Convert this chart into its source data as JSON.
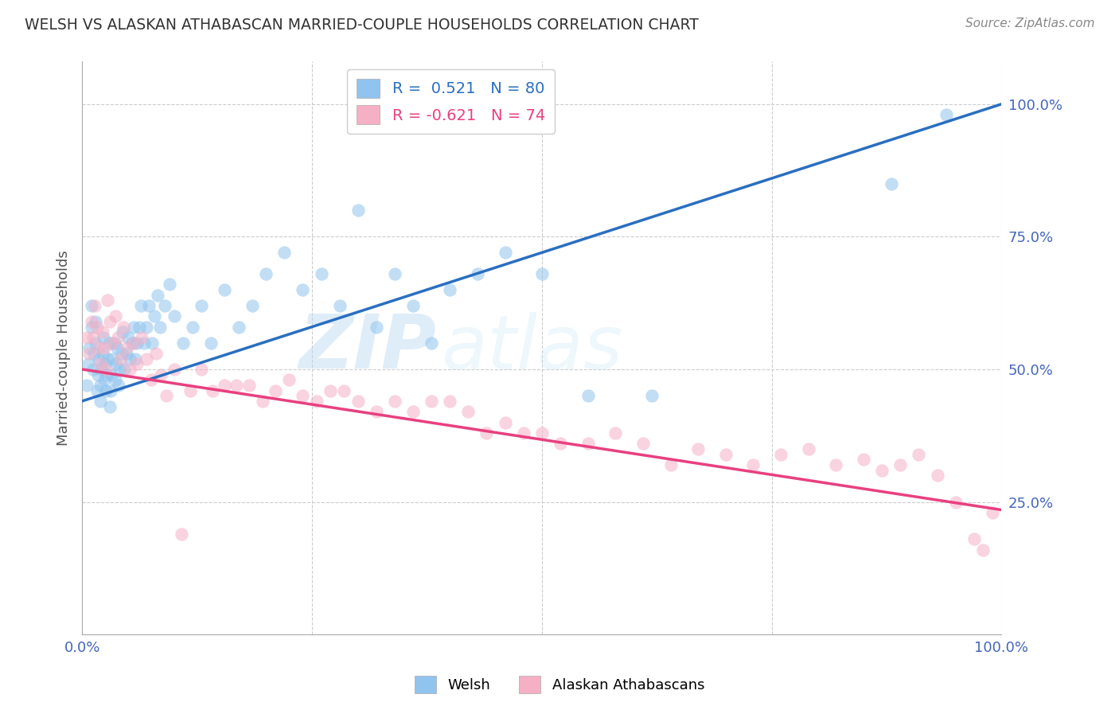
{
  "title": "WELSH VS ALASKAN ATHABASCAN MARRIED-COUPLE HOUSEHOLDS CORRELATION CHART",
  "source": "Source: ZipAtlas.com",
  "ylabel": "Married-couple Households",
  "welsh_R": 0.521,
  "welsh_N": 80,
  "athabascan_R": -0.621,
  "athabascan_N": 74,
  "xlim": [
    0,
    1
  ],
  "ylim": [
    0,
    1.08
  ],
  "welsh_color": "#90C4EE",
  "athabascan_color": "#F5B0C5",
  "welsh_line_color": "#2A6FC0",
  "athabascan_line_color": "#E84080",
  "background_color": "#FFFFFF",
  "grid_color": "#CCCCCC",
  "title_color": "#333333",
  "tick_label_color": "#4466BB",
  "legend_labels": [
    "Welsh",
    "Alaskan Athabascans"
  ],
  "welsh_line_x0": 0.0,
  "welsh_line_y0": 0.44,
  "welsh_line_x1": 1.0,
  "welsh_line_y1": 1.0,
  "ath_line_x0": 0.0,
  "ath_line_y0": 0.5,
  "ath_line_x1": 1.0,
  "ath_line_y1": 0.235,
  "welsh_x": [
    0.005,
    0.007,
    0.008,
    0.01,
    0.01,
    0.012,
    0.013,
    0.015,
    0.015,
    0.016,
    0.017,
    0.018,
    0.02,
    0.02,
    0.021,
    0.022,
    0.023,
    0.024,
    0.025,
    0.026,
    0.027,
    0.028,
    0.029,
    0.03,
    0.031,
    0.032,
    0.033,
    0.035,
    0.036,
    0.037,
    0.038,
    0.04,
    0.041,
    0.043,
    0.044,
    0.046,
    0.048,
    0.05,
    0.052,
    0.054,
    0.056,
    0.058,
    0.06,
    0.062,
    0.064,
    0.067,
    0.07,
    0.073,
    0.076,
    0.079,
    0.082,
    0.085,
    0.09,
    0.095,
    0.1,
    0.11,
    0.12,
    0.13,
    0.14,
    0.155,
    0.17,
    0.185,
    0.2,
    0.22,
    0.24,
    0.26,
    0.28,
    0.3,
    0.32,
    0.34,
    0.36,
    0.38,
    0.4,
    0.43,
    0.46,
    0.5,
    0.55,
    0.62,
    0.88,
    0.94
  ],
  "welsh_y": [
    0.47,
    0.51,
    0.54,
    0.58,
    0.62,
    0.5,
    0.53,
    0.55,
    0.59,
    0.46,
    0.49,
    0.52,
    0.44,
    0.47,
    0.5,
    0.53,
    0.56,
    0.48,
    0.51,
    0.46,
    0.49,
    0.52,
    0.55,
    0.43,
    0.46,
    0.49,
    0.52,
    0.55,
    0.48,
    0.51,
    0.54,
    0.47,
    0.5,
    0.53,
    0.57,
    0.5,
    0.53,
    0.56,
    0.52,
    0.55,
    0.58,
    0.52,
    0.55,
    0.58,
    0.62,
    0.55,
    0.58,
    0.62,
    0.55,
    0.6,
    0.64,
    0.58,
    0.62,
    0.66,
    0.6,
    0.55,
    0.58,
    0.62,
    0.55,
    0.65,
    0.58,
    0.62,
    0.68,
    0.72,
    0.65,
    0.68,
    0.62,
    0.8,
    0.58,
    0.68,
    0.62,
    0.55,
    0.65,
    0.68,
    0.72,
    0.68,
    0.45,
    0.45,
    0.85,
    0.98
  ],
  "athabascan_x": [
    0.005,
    0.008,
    0.01,
    0.012,
    0.014,
    0.016,
    0.018,
    0.02,
    0.022,
    0.024,
    0.026,
    0.028,
    0.03,
    0.033,
    0.036,
    0.039,
    0.042,
    0.045,
    0.048,
    0.052,
    0.056,
    0.06,
    0.065,
    0.07,
    0.075,
    0.08,
    0.086,
    0.092,
    0.1,
    0.108,
    0.118,
    0.13,
    0.142,
    0.155,
    0.168,
    0.182,
    0.196,
    0.21,
    0.225,
    0.24,
    0.255,
    0.27,
    0.285,
    0.3,
    0.32,
    0.34,
    0.36,
    0.38,
    0.4,
    0.42,
    0.44,
    0.46,
    0.48,
    0.5,
    0.52,
    0.55,
    0.58,
    0.61,
    0.64,
    0.67,
    0.7,
    0.73,
    0.76,
    0.79,
    0.82,
    0.85,
    0.87,
    0.89,
    0.91,
    0.93,
    0.95,
    0.97,
    0.98,
    0.99
  ],
  "athabascan_y": [
    0.56,
    0.53,
    0.59,
    0.56,
    0.62,
    0.58,
    0.54,
    0.51,
    0.57,
    0.54,
    0.5,
    0.63,
    0.59,
    0.55,
    0.6,
    0.56,
    0.52,
    0.58,
    0.54,
    0.5,
    0.55,
    0.51,
    0.56,
    0.52,
    0.48,
    0.53,
    0.49,
    0.45,
    0.5,
    0.19,
    0.46,
    0.5,
    0.46,
    0.47,
    0.47,
    0.47,
    0.44,
    0.46,
    0.48,
    0.45,
    0.44,
    0.46,
    0.46,
    0.44,
    0.42,
    0.44,
    0.42,
    0.44,
    0.44,
    0.42,
    0.38,
    0.4,
    0.38,
    0.38,
    0.36,
    0.36,
    0.38,
    0.36,
    0.32,
    0.35,
    0.34,
    0.32,
    0.34,
    0.35,
    0.32,
    0.33,
    0.31,
    0.32,
    0.34,
    0.3,
    0.25,
    0.18,
    0.16,
    0.23
  ]
}
